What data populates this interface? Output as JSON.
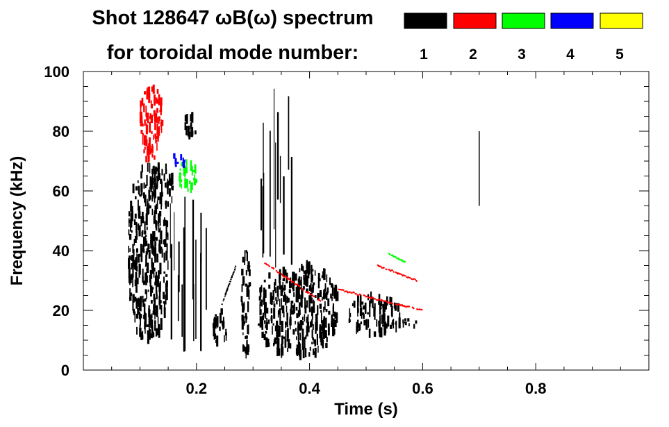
{
  "chart_data": {
    "type": "heatmap",
    "title_line1": "Shot 128647 ωB(ω) spectrum",
    "title_line2": "for toroidal mode number:",
    "xlabel": "Time (s)",
    "ylabel": "Frequency (kHz)",
    "xlim": [
      0.0,
      1.0
    ],
    "ylim": [
      0,
      100
    ],
    "x_ticks": [
      0.2,
      0.4,
      0.6,
      0.8
    ],
    "x_tick_labels": [
      "0.2",
      "0.4",
      "0.6",
      "0.8"
    ],
    "y_ticks": [
      0,
      20,
      40,
      60,
      80,
      100
    ],
    "y_tick_labels": [
      "0",
      "20",
      "40",
      "60",
      "80",
      "100"
    ],
    "legend": [
      {
        "label": "1",
        "color": "#000000"
      },
      {
        "label": "2",
        "color": "#ff0000"
      },
      {
        "label": "3",
        "color": "#00ff00"
      },
      {
        "label": "4",
        "color": "#0000ff"
      },
      {
        "label": "5",
        "color": "#ffff00"
      }
    ],
    "features": [
      {
        "mode": 1,
        "kind": "blob",
        "t": [
          0.08,
          0.15
        ],
        "f": [
          10,
          68
        ]
      },
      {
        "mode": 1,
        "kind": "blob",
        "t": [
          0.12,
          0.16
        ],
        "f": [
          55,
          68
        ]
      },
      {
        "mode": 1,
        "kind": "streaks",
        "t": [
          0.15,
          0.23
        ],
        "f": [
          5,
          60
        ]
      },
      {
        "mode": 1,
        "kind": "blob",
        "t": [
          0.18,
          0.2
        ],
        "f": [
          78,
          87
        ]
      },
      {
        "mode": 1,
        "kind": "blob",
        "t": [
          0.23,
          0.255
        ],
        "f": [
          8,
          22
        ]
      },
      {
        "mode": 1,
        "kind": "chirp",
        "t0": 0.245,
        "f0": 22,
        "t1": 0.27,
        "f1": 35
      },
      {
        "mode": 1,
        "kind": "blob",
        "t": [
          0.28,
          0.295
        ],
        "f": [
          5,
          40
        ]
      },
      {
        "mode": 1,
        "kind": "blob",
        "t": [
          0.31,
          0.45
        ],
        "f": [
          5,
          35
        ]
      },
      {
        "mode": 1,
        "kind": "streaks",
        "t": [
          0.31,
          0.37
        ],
        "f": [
          30,
          98
        ]
      },
      {
        "mode": 1,
        "kind": "blob",
        "t": [
          0.47,
          0.56
        ],
        "f": [
          12,
          25
        ]
      },
      {
        "mode": 1,
        "kind": "blob",
        "t": [
          0.56,
          0.59
        ],
        "f": [
          14,
          17
        ]
      },
      {
        "mode": 1,
        "kind": "line",
        "t": 0.7,
        "f": [
          55,
          80
        ]
      },
      {
        "mode": 2,
        "kind": "blob",
        "t": [
          0.1,
          0.14
        ],
        "f": [
          70,
          95
        ]
      },
      {
        "mode": 2,
        "kind": "chirp",
        "t0": 0.32,
        "f0": 36,
        "t1": 0.42,
        "f1": 23
      },
      {
        "mode": 2,
        "kind": "chirp",
        "t0": 0.45,
        "f0": 27,
        "t1": 0.6,
        "f1": 20
      },
      {
        "mode": 2,
        "kind": "chirp",
        "t0": 0.52,
        "f0": 35,
        "t1": 0.59,
        "f1": 30
      },
      {
        "mode": 3,
        "kind": "blob",
        "t": [
          0.17,
          0.2
        ],
        "f": [
          60,
          70
        ]
      },
      {
        "mode": 3,
        "kind": "chirp",
        "t0": 0.54,
        "f0": 39,
        "t1": 0.57,
        "f1": 36
      },
      {
        "mode": 4,
        "kind": "blob",
        "t": [
          0.16,
          0.18
        ],
        "f": [
          68,
          73
        ]
      }
    ]
  }
}
